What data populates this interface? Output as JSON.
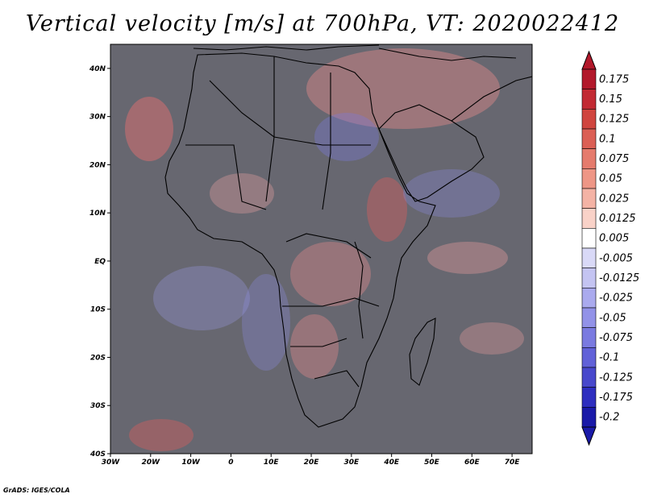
{
  "title": "Vertical velocity [m/s] at 700hPa, VT: 2020022412",
  "credit": "GrADS: IGES/COLA",
  "map": {
    "lon_ticks": [
      "30W",
      "20W",
      "10W",
      "0",
      "10E",
      "20E",
      "30E",
      "40E",
      "50E",
      "60E",
      "70E"
    ],
    "lat_ticks": [
      "40S",
      "30S",
      "20S",
      "10S",
      "EQ",
      "10N",
      "20N",
      "30N",
      "40N"
    ],
    "lon_range": [
      -30,
      75
    ],
    "lat_range": [
      -40,
      45
    ]
  },
  "colorbar": {
    "labels": [
      "0.175",
      "0.15",
      "0.125",
      "0.1",
      "0.075",
      "0.05",
      "0.025",
      "0.0125",
      "0.005",
      "-0.005",
      "-0.0125",
      "-0.025",
      "-0.05",
      "-0.075",
      "-0.1",
      "-0.125",
      "-0.175",
      "-0.2"
    ],
    "colors": [
      "#b2182b",
      "#c22a33",
      "#d0453f",
      "#db5f55",
      "#e57b6d",
      "#ee9686",
      "#f4b3a5",
      "#f9d2c8",
      "#ffffff",
      "#d9d9f7",
      "#c4c4f2",
      "#aaaaee",
      "#9292e8",
      "#7a7ae0",
      "#6161d8",
      "#4848cc",
      "#2e2ebf",
      "#1a1aa8"
    ]
  }
}
